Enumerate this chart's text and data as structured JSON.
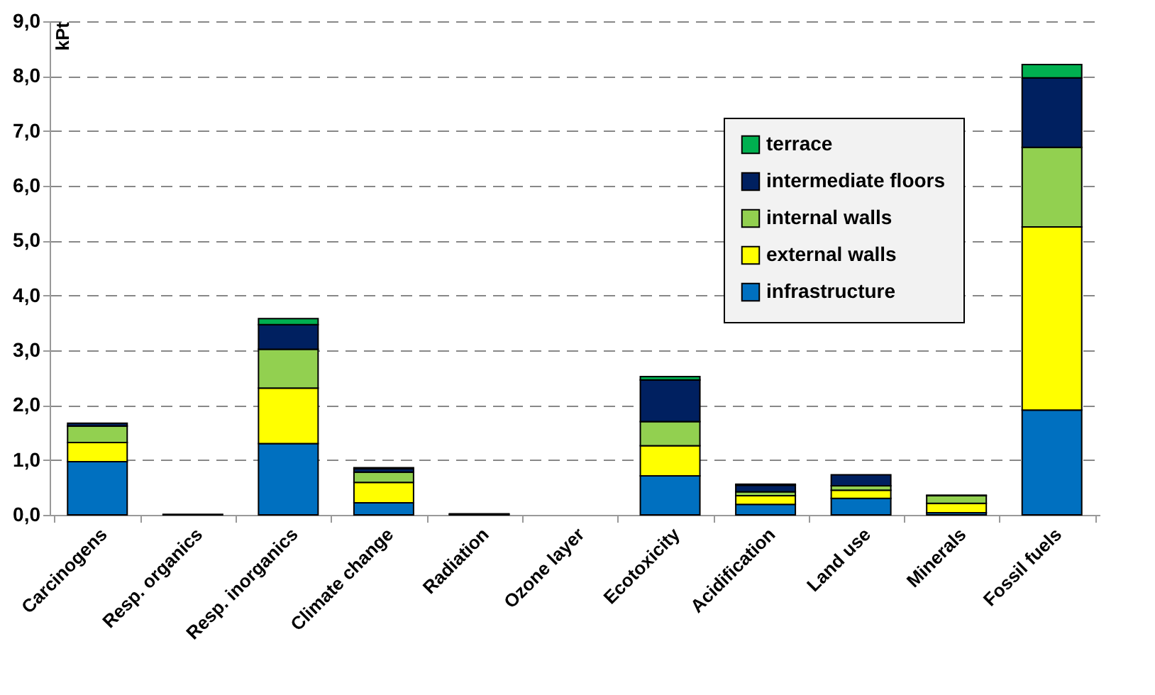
{
  "chart_data": {
    "type": "bar",
    "stacked": true,
    "ylabel": "kPt",
    "categories": [
      "Carcinogens",
      "Resp. organics",
      "Resp. inorganics",
      "Climate change",
      "Radiation",
      "Ozone layer",
      "Ecotoxicity",
      "Acidification",
      "Land use",
      "Minerals",
      "Fossil fuels"
    ],
    "series": [
      {
        "name": "infrastructure",
        "color": "#0070c0",
        "values": [
          0.97,
          0.01,
          1.3,
          0.22,
          0.01,
          0,
          0.71,
          0.19,
          0.3,
          0.04,
          1.91
        ]
      },
      {
        "name": "external walls",
        "color": "#ffff00",
        "values": [
          0.35,
          0,
          1.01,
          0.37,
          0,
          0,
          0.55,
          0.16,
          0.15,
          0.17,
          3.34
        ]
      },
      {
        "name": "internal walls",
        "color": "#92d050",
        "values": [
          0.3,
          0,
          0.71,
          0.19,
          0,
          0,
          0.44,
          0.07,
          0.08,
          0.14,
          1.45
        ]
      },
      {
        "name": "intermediate floors",
        "color": "#002060",
        "values": [
          0.05,
          0,
          0.45,
          0.06,
          0.01,
          0,
          0.76,
          0.12,
          0.2,
          0.01,
          1.27
        ]
      },
      {
        "name": "terrace",
        "color": "#00b050",
        "values": [
          null,
          0,
          0.11,
          0.02,
          0,
          0,
          0.06,
          0.02,
          null,
          0,
          0.24
        ]
      }
    ],
    "ylim": [
      0,
      9
    ],
    "yticks": [
      {
        "value": 0,
        "label": "0,0"
      },
      {
        "value": 1,
        "label": "1,0"
      },
      {
        "value": 2,
        "label": "2,0"
      },
      {
        "value": 3,
        "label": "3,0"
      },
      {
        "value": 4,
        "label": "4,0"
      },
      {
        "value": 5,
        "label": "5,0"
      },
      {
        "value": 6,
        "label": "6,0"
      },
      {
        "value": 7,
        "label": "7,0"
      },
      {
        "value": 8,
        "label": "8,0"
      },
      {
        "value": 9,
        "label": "9,0"
      }
    ],
    "grid": "y",
    "legend": "top right"
  }
}
